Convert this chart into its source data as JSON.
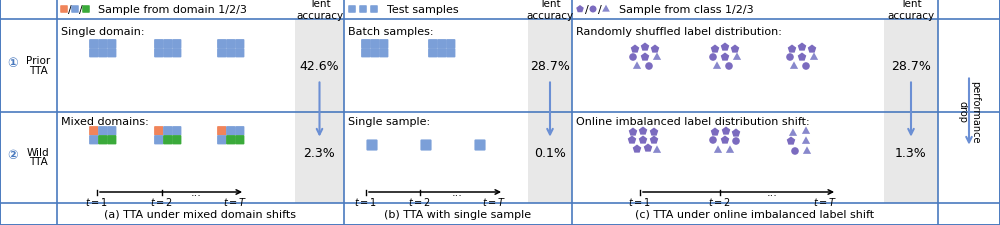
{
  "blue": "#6b8fd4",
  "blue_sq": "#7b9fd8",
  "orange": "#f0845a",
  "green": "#3aaa3a",
  "purple": "#7b6bbf",
  "light_purple": "#8888cc",
  "shade": "#e8e8e8",
  "black": "#222222",
  "border": "#4a7abf",
  "fig_width": 10.0,
  "fig_height": 2.26,
  "acc_a1": "42.6%",
  "acc_a2": "2.3%",
  "acc_b1": "28.7%",
  "acc_b2": "0.1%",
  "acc_c1": "28.7%",
  "acc_c2": "1.3%"
}
